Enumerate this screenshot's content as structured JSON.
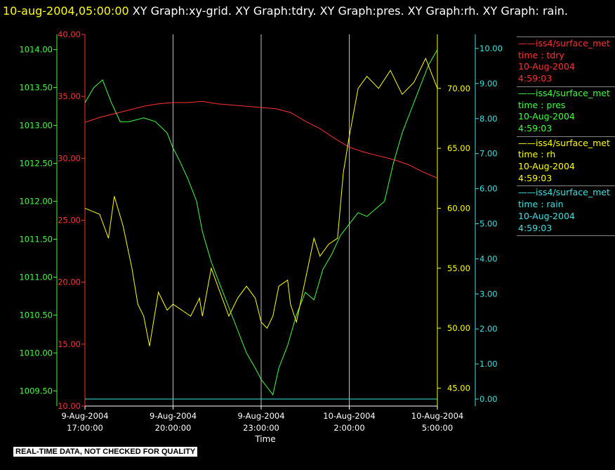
{
  "header": {
    "timestamp": "10-aug-2004,05:00:00",
    "graphs": "XY Graph:xy-grid.  XY Graph:tdry.  XY Graph:pres.  XY Graph:rh.  XY Graph: rain."
  },
  "colors": {
    "tdry": "#ff3030",
    "pres": "#40ff40",
    "rh": "#ffff00",
    "rain": "#40e0e0",
    "grid": "#c0c0c0",
    "text": "#ffffff"
  },
  "legend": [
    {
      "series": "iss4/surface_met",
      "var": "time : tdry",
      "date": "10-Aug-2004",
      "time": "4:59:03",
      "color": "#ff3030"
    },
    {
      "series": "iss4/surface_met",
      "var": "time : pres",
      "date": "10-Aug-2004",
      "time": "4:59:03",
      "color": "#40ff40"
    },
    {
      "series": "iss4/surface_met",
      "var": "time : rh",
      "date": "10-Aug-2004",
      "time": "4:59:03",
      "color": "#ffff00"
    },
    {
      "series": "iss4/surface_met",
      "var": "time : rain",
      "date": "10-Aug-2004",
      "time": "4:59:03",
      "color": "#40e0e0"
    }
  ],
  "disclaimer": "REAL-TIME DATA, NOT CHECKED FOR QUALITY",
  "chart_data": {
    "type": "line",
    "xlabel": "Time",
    "xlim_hours": [
      0,
      12
    ],
    "x_ticks": [
      {
        "hour": 0,
        "date": "9-Aug-2004",
        "time": "17:00:00"
      },
      {
        "hour": 3,
        "date": "9-Aug-2004",
        "time": "20:00:00"
      },
      {
        "hour": 6,
        "date": "9-Aug-2004",
        "time": "23:00:00"
      },
      {
        "hour": 9,
        "date": "10-Aug-2004",
        "time": "2:00:00"
      },
      {
        "hour": 12,
        "date": "10-Aug-2004",
        "time": "5:00:00"
      }
    ],
    "axes": {
      "pres": {
        "range": [
          1009.3,
          1014.2
        ],
        "ticks": [
          "1009.50",
          "1010.00",
          "1010.50",
          "1011.00",
          "1011.50",
          "1012.00",
          "1012.50",
          "1013.00",
          "1013.50",
          "1014.00"
        ]
      },
      "tdry": {
        "range": [
          10,
          40
        ],
        "ticks": [
          "10.00",
          "15.00",
          "20.00",
          "25.00",
          "30.00",
          "35.00",
          "40.00"
        ]
      },
      "rh": {
        "range": [
          43.5,
          74.5
        ],
        "ticks": [
          "45.00",
          "50.00",
          "55.00",
          "60.00",
          "65.00",
          "70.00"
        ]
      },
      "rain": {
        "range": [
          -0.2,
          10.4
        ],
        "ticks": [
          "0.00",
          "1.00",
          "2.00",
          "3.00",
          "4.00",
          "5.00",
          "6.00",
          "7.00",
          "8.00",
          "9.00",
          "10.00"
        ]
      }
    },
    "series": [
      {
        "name": "iss4/surface_met time : tdry",
        "key": "tdry",
        "x": [
          0,
          0.5,
          1,
          1.5,
          2,
          2.5,
          3,
          3.5,
          4,
          4.5,
          5,
          5.5,
          6,
          6.5,
          7,
          7.5,
          8,
          8.5,
          9,
          9.5,
          10,
          10.5,
          11,
          11.5,
          12
        ],
        "y": [
          32.9,
          33.3,
          33.6,
          33.9,
          34.2,
          34.4,
          34.5,
          34.5,
          34.6,
          34.4,
          34.3,
          34.2,
          34.1,
          34.0,
          33.7,
          33.0,
          32.4,
          31.6,
          30.9,
          30.5,
          30.2,
          29.9,
          29.5,
          28.9,
          28.4
        ]
      },
      {
        "name": "iss4/surface_met time : pres",
        "key": "pres",
        "x": [
          0,
          0.3,
          0.6,
          0.9,
          1.2,
          1.5,
          2,
          2.4,
          2.8,
          3,
          3.2,
          3.5,
          3.8,
          4.0,
          4.3,
          4.6,
          4.9,
          5.2,
          5.5,
          5.8,
          6.0,
          6.2,
          6.4,
          6.6,
          6.9,
          7.2,
          7.5,
          7.8,
          8.1,
          8.4,
          8.7,
          9.0,
          9.3,
          9.6,
          9.9,
          10.2,
          10.5,
          10.8,
          11.1,
          11.4,
          11.7,
          12
        ],
        "y": [
          1013.3,
          1013.5,
          1013.6,
          1013.3,
          1013.05,
          1013.05,
          1013.1,
          1013.05,
          1012.9,
          1012.7,
          1012.55,
          1012.3,
          1012.0,
          1011.6,
          1011.2,
          1010.9,
          1010.6,
          1010.3,
          1010.0,
          1009.8,
          1009.65,
          1009.55,
          1009.45,
          1009.8,
          1010.1,
          1010.5,
          1010.8,
          1010.7,
          1011.1,
          1011.3,
          1011.55,
          1011.7,
          1011.85,
          1011.8,
          1011.9,
          1012.0,
          1012.5,
          1012.9,
          1013.2,
          1013.5,
          1013.8,
          1014.0
        ]
      },
      {
        "name": "iss4/surface_met time : rh",
        "key": "rh",
        "x": [
          0,
          0.5,
          0.8,
          1.0,
          1.3,
          1.6,
          1.8,
          2.0,
          2.2,
          2.5,
          2.8,
          3.0,
          3.3,
          3.6,
          3.9,
          4.0,
          4.3,
          4.6,
          4.9,
          5.2,
          5.5,
          5.8,
          6.0,
          6.2,
          6.4,
          6.6,
          6.9,
          7.0,
          7.2,
          7.5,
          7.8,
          8.0,
          8.3,
          8.6,
          8.8,
          9.0,
          9.3,
          9.6,
          10.0,
          10.4,
          10.8,
          11.2,
          11.6,
          12
        ],
        "y": [
          60.0,
          59.5,
          57.5,
          61.0,
          58.5,
          55.0,
          52.0,
          51.0,
          48.5,
          53.0,
          51.5,
          52.0,
          51.5,
          51.0,
          52.5,
          51.0,
          55.0,
          53.0,
          51.0,
          52.5,
          53.5,
          52.5,
          50.5,
          50.0,
          51.0,
          53.5,
          54.0,
          52.0,
          50.5,
          54.0,
          57.5,
          56.0,
          57.0,
          57.5,
          63.0,
          66.0,
          70.0,
          71.0,
          70.0,
          71.5,
          69.5,
          70.5,
          72.5,
          70.0
        ]
      },
      {
        "name": "iss4/surface_met time : rain",
        "key": "rain",
        "x": [
          0,
          12
        ],
        "y": [
          0.0,
          0.0
        ]
      }
    ]
  }
}
